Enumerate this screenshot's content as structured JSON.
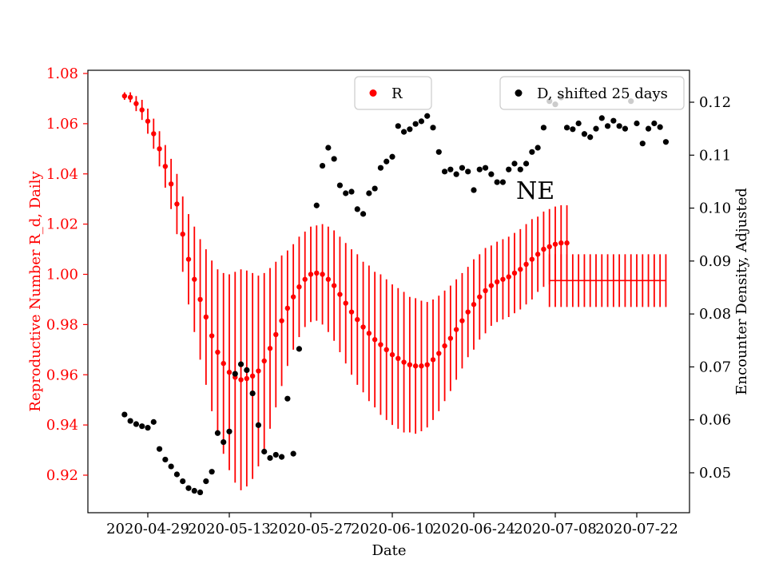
{
  "chart_data": {
    "type": "scatter",
    "title": "",
    "x_axis": {
      "label": "Date",
      "tick_labels": [
        "2020-04-29",
        "2020-05-13",
        "2020-05-27",
        "2020-06-10",
        "2020-06-24",
        "2020-07-08",
        "2020-07-22"
      ],
      "tick_days": [
        4,
        18,
        32,
        46,
        60,
        74,
        88
      ],
      "start_date": "2020-04-25"
    },
    "left_axis": {
      "label": "Reproductive Number R_d, Daily",
      "color": "#ff0000",
      "min": 0.905,
      "max": 1.081,
      "tick_labels": [
        "0.92",
        "0.94",
        "0.96",
        "0.98",
        "1.00",
        "1.02",
        "1.04",
        "1.06",
        "1.08"
      ],
      "tick_values": [
        0.92,
        0.94,
        0.96,
        0.98,
        1.0,
        1.02,
        1.04,
        1.06,
        1.08
      ]
    },
    "right_axis": {
      "label": "Encounter Density, Adjusted",
      "color": "#000000",
      "min": 0.0425,
      "max": 0.126,
      "tick_labels": [
        "0.05",
        "0.06",
        "0.07",
        "0.08",
        "0.09",
        "0.10",
        "0.11",
        "0.12"
      ],
      "tick_values": [
        0.05,
        0.06,
        0.07,
        0.08,
        0.09,
        0.1,
        0.11,
        0.12
      ]
    },
    "annotation": {
      "text": "NE"
    },
    "legend": [
      {
        "label": "R",
        "color": "#ff0000"
      },
      {
        "label": "D, shifted 25 days",
        "color": "#000000"
      }
    ],
    "series": [
      {
        "name": "R",
        "style": "errorbar-scatter",
        "axis": "left",
        "color": "#ff0000",
        "points_format": [
          "day_offset_from_2020-04-25",
          "value",
          "error"
        ],
        "points": [
          [
            0,
            1.071,
            0.0015
          ],
          [
            1,
            1.0705,
            0.002
          ],
          [
            2,
            1.068,
            0.003
          ],
          [
            3,
            1.0655,
            0.004
          ],
          [
            4,
            1.061,
            0.005
          ],
          [
            5,
            1.056,
            0.006
          ],
          [
            6,
            1.05,
            0.007
          ],
          [
            7,
            1.043,
            0.0085
          ],
          [
            8,
            1.036,
            0.01
          ],
          [
            9,
            1.028,
            0.012
          ],
          [
            10,
            1.016,
            0.015
          ],
          [
            11,
            1.006,
            0.018
          ],
          [
            12,
            0.998,
            0.021
          ],
          [
            13,
            0.99,
            0.024
          ],
          [
            14,
            0.983,
            0.027
          ],
          [
            15,
            0.9755,
            0.03
          ],
          [
            16,
            0.969,
            0.033
          ],
          [
            17,
            0.9645,
            0.036
          ],
          [
            18,
            0.961,
            0.039
          ],
          [
            19,
            0.959,
            0.042
          ],
          [
            20,
            0.958,
            0.044
          ],
          [
            21,
            0.9585,
            0.043
          ],
          [
            22,
            0.9595,
            0.041
          ],
          [
            23,
            0.9615,
            0.038
          ],
          [
            24,
            0.9655,
            0.035
          ],
          [
            25,
            0.9705,
            0.032
          ],
          [
            26,
            0.976,
            0.029
          ],
          [
            27,
            0.9815,
            0.026
          ],
          [
            28,
            0.9865,
            0.023
          ],
          [
            29,
            0.991,
            0.021
          ],
          [
            30,
            0.995,
            0.02
          ],
          [
            31,
            0.998,
            0.019
          ],
          [
            32,
            1.0,
            0.019
          ],
          [
            33,
            1.0005,
            0.019
          ],
          [
            34,
            1.0,
            0.02
          ],
          [
            35,
            0.998,
            0.021
          ],
          [
            36,
            0.9955,
            0.022
          ],
          [
            37,
            0.992,
            0.023
          ],
          [
            38,
            0.9885,
            0.024
          ],
          [
            39,
            0.985,
            0.025
          ],
          [
            40,
            0.982,
            0.026
          ],
          [
            41,
            0.979,
            0.026
          ],
          [
            42,
            0.9765,
            0.027
          ],
          [
            43,
            0.974,
            0.027
          ],
          [
            44,
            0.972,
            0.028
          ],
          [
            45,
            0.97,
            0.028
          ],
          [
            46,
            0.968,
            0.028
          ],
          [
            47,
            0.9665,
            0.028
          ],
          [
            48,
            0.965,
            0.028
          ],
          [
            49,
            0.964,
            0.027
          ],
          [
            50,
            0.9635,
            0.027
          ],
          [
            51,
            0.9635,
            0.026
          ],
          [
            52,
            0.964,
            0.025
          ],
          [
            53,
            0.966,
            0.024
          ],
          [
            54,
            0.9685,
            0.023
          ],
          [
            55,
            0.9715,
            0.022
          ],
          [
            56,
            0.9745,
            0.021
          ],
          [
            57,
            0.978,
            0.02
          ],
          [
            58,
            0.9815,
            0.019
          ],
          [
            59,
            0.985,
            0.018
          ],
          [
            60,
            0.988,
            0.018
          ],
          [
            61,
            0.991,
            0.017
          ],
          [
            62,
            0.9935,
            0.017
          ],
          [
            63,
            0.9955,
            0.016
          ],
          [
            64,
            0.997,
            0.016
          ],
          [
            65,
            0.998,
            0.016
          ],
          [
            66,
            0.999,
            0.016
          ],
          [
            67,
            1.0005,
            0.016
          ],
          [
            68,
            1.002,
            0.016
          ],
          [
            69,
            1.004,
            0.016
          ],
          [
            70,
            1.006,
            0.016
          ],
          [
            71,
            1.008,
            0.015
          ],
          [
            72,
            1.01,
            0.015
          ],
          [
            73,
            1.011,
            0.015
          ],
          [
            74,
            1.012,
            0.015
          ],
          [
            75,
            1.0125,
            0.015
          ],
          [
            76,
            1.0125,
            0.015
          ]
        ],
        "flat_segment": {
          "day_start": 73,
          "day_end": 93,
          "value": 0.9975,
          "error": 0.0105
        }
      },
      {
        "name": "D, shifted 25 days",
        "style": "scatter",
        "axis": "right",
        "color": "#000000",
        "points_format": [
          "day_offset_from_2020-04-25",
          "value"
        ],
        "points": [
          [
            0,
            0.061
          ],
          [
            1,
            0.0598
          ],
          [
            2,
            0.0592
          ],
          [
            3,
            0.0588
          ],
          [
            4,
            0.0585
          ],
          [
            5,
            0.0596
          ],
          [
            6,
            0.0545
          ],
          [
            7,
            0.0525
          ],
          [
            8,
            0.0512
          ],
          [
            9,
            0.0497
          ],
          [
            10,
            0.0484
          ],
          [
            11,
            0.0471
          ],
          [
            12,
            0.0466
          ],
          [
            13,
            0.0463
          ],
          [
            14,
            0.0484
          ],
          [
            15,
            0.0502
          ],
          [
            16,
            0.0575
          ],
          [
            17,
            0.0558
          ],
          [
            18,
            0.0578
          ],
          [
            19,
            0.0687
          ],
          [
            20,
            0.0705
          ],
          [
            21,
            0.0694
          ],
          [
            22,
            0.065
          ],
          [
            23,
            0.059
          ],
          [
            24,
            0.054
          ],
          [
            25,
            0.0528
          ],
          [
            26,
            0.0534
          ],
          [
            27,
            0.053
          ],
          [
            28,
            0.064
          ],
          [
            29,
            0.0536
          ],
          [
            30,
            0.0734
          ],
          [
            33,
            0.1005
          ],
          [
            34,
            0.108
          ],
          [
            35,
            0.1114
          ],
          [
            36,
            0.1093
          ],
          [
            37,
            0.1043
          ],
          [
            38,
            0.1028
          ],
          [
            39,
            0.1031
          ],
          [
            40,
            0.0998
          ],
          [
            41,
            0.0989
          ],
          [
            42,
            0.1028
          ],
          [
            43,
            0.1037
          ],
          [
            44,
            0.1076
          ],
          [
            45,
            0.1088
          ],
          [
            46,
            0.1097
          ],
          [
            47,
            0.1155
          ],
          [
            48,
            0.1144
          ],
          [
            49,
            0.1149
          ],
          [
            50,
            0.1159
          ],
          [
            51,
            0.1164
          ],
          [
            52,
            0.1174
          ],
          [
            53,
            0.1152
          ],
          [
            54,
            0.1106
          ],
          [
            55,
            0.1069
          ],
          [
            56,
            0.1073
          ],
          [
            57,
            0.1064
          ],
          [
            58,
            0.1076
          ],
          [
            59,
            0.1069
          ],
          [
            60,
            0.1034
          ],
          [
            61,
            0.1073
          ],
          [
            62,
            0.1076
          ],
          [
            63,
            0.1064
          ],
          [
            64,
            0.1049
          ],
          [
            65,
            0.1049
          ],
          [
            66,
            0.1073
          ],
          [
            67,
            0.1084
          ],
          [
            68,
            0.1073
          ],
          [
            69,
            0.1084
          ],
          [
            70,
            0.1106
          ],
          [
            71,
            0.1114
          ],
          [
            72,
            0.1152
          ],
          [
            73,
            0.1202
          ],
          [
            74,
            0.1196
          ],
          [
            75,
            0.1209
          ],
          [
            76,
            0.1152
          ],
          [
            77,
            0.1149
          ],
          [
            78,
            0.116
          ],
          [
            79,
            0.114
          ],
          [
            80,
            0.1134
          ],
          [
            81,
            0.115
          ],
          [
            82,
            0.117
          ],
          [
            83,
            0.1155
          ],
          [
            84,
            0.1165
          ],
          [
            85,
            0.1155
          ],
          [
            86,
            0.115
          ],
          [
            87,
            0.1202
          ],
          [
            88,
            0.116
          ],
          [
            89,
            0.1122
          ],
          [
            90,
            0.115
          ],
          [
            91,
            0.116
          ],
          [
            92,
            0.1153
          ],
          [
            93,
            0.1125
          ]
        ]
      }
    ],
    "grid": false,
    "legend_position": "upper center, two separate boxes",
    "colors": {
      "r_series": "#ff0000",
      "d_series": "#000000",
      "legend_border": "#cccccc",
      "frame": "#000000"
    }
  }
}
